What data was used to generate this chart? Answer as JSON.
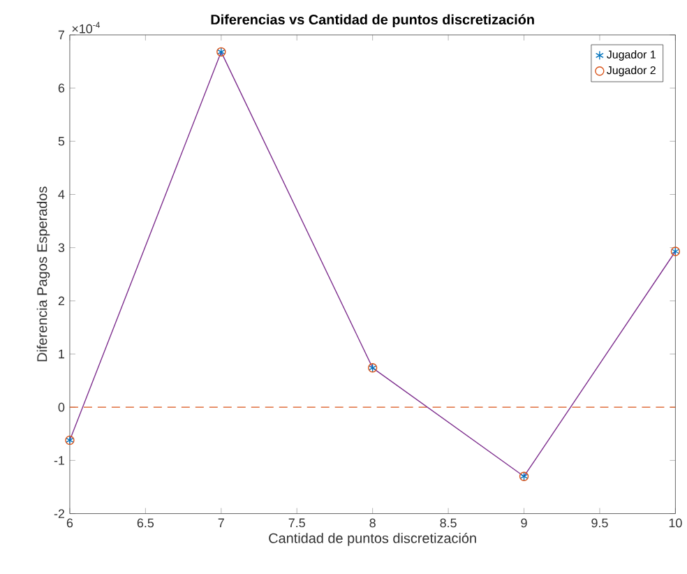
{
  "chart_data": {
    "type": "scatter",
    "title": "Diferencias vs Cantidad de puntos discretización",
    "xlabel": "Cantidad de puntos discretización",
    "ylabel": "Diferencia Pagos Esperados",
    "x": [
      6,
      7,
      8,
      9,
      10
    ],
    "series": [
      {
        "name": "Jugador 1",
        "color": "#0072bd",
        "marker": "cross",
        "values": [
          -0.62,
          6.68,
          0.74,
          -1.3,
          2.93
        ]
      },
      {
        "name": "Jugador 2",
        "color": "#d95319",
        "marker": "circle",
        "values": [
          -0.62,
          6.68,
          0.74,
          -1.3,
          2.93
        ]
      },
      {
        "type": "line",
        "color": "#7e2f8e",
        "marker": "none",
        "line_style": "solid",
        "values": [
          -0.62,
          6.68,
          0.74,
          -1.3,
          2.93
        ]
      }
    ],
    "ref_lines": [
      {
        "axis": "y",
        "value": 0,
        "color": "#d95319",
        "line_style": "dashed"
      }
    ],
    "annotations": [
      "×10$^{-4}$"
    ],
    "xlim": [
      6,
      10
    ],
    "ylim": [
      -2,
      7
    ],
    "xticks": [
      6,
      6.5,
      7,
      7.5,
      8,
      8.5,
      9,
      9.5,
      10
    ],
    "yticks": [
      -2,
      -1,
      0,
      1,
      2,
      3,
      4,
      5,
      6,
      7
    ],
    "grid": false,
    "legend": "top right"
  }
}
